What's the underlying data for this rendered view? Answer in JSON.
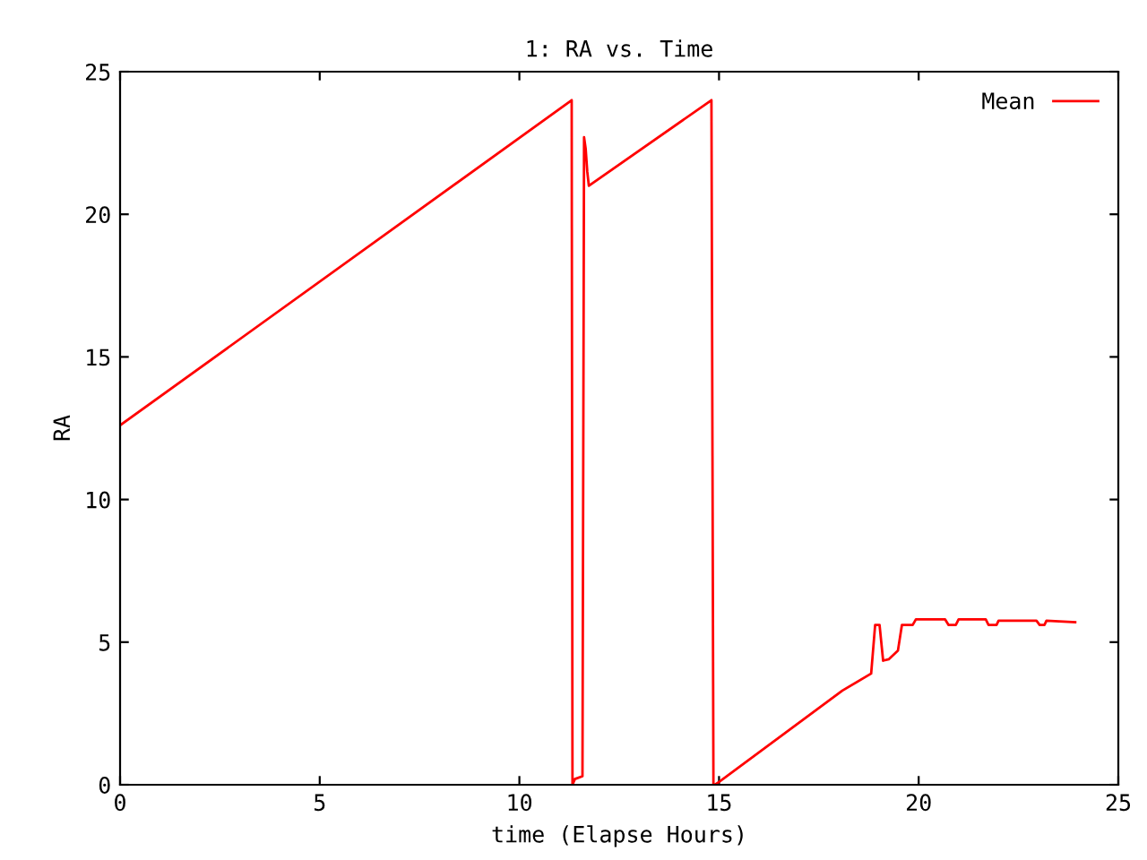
{
  "chart_data": {
    "type": "line",
    "title": "1: RA vs. Time",
    "xlabel": "time (Elapse Hours)",
    "ylabel": "RA",
    "series": [
      {
        "name": "Mean",
        "color": "#ff0000",
        "x": [
          0,
          11.31,
          11.33,
          11.39,
          11.58,
          11.62,
          11.66,
          11.7,
          11.74,
          14.81,
          14.86,
          14.9,
          15.0,
          18.09,
          18.81,
          18.91,
          19.02,
          19.11,
          19.25,
          19.48,
          19.58,
          19.85,
          19.93,
          20.66,
          20.75,
          20.93,
          21.0,
          21.68,
          21.75,
          21.95,
          22.0,
          22.95,
          23.03,
          23.15,
          23.2,
          23.92
        ],
        "values": [
          12.6,
          24.0,
          0,
          0.2,
          0.3,
          22.7,
          22.3,
          21.5,
          21.0,
          24.0,
          0,
          0,
          0.1,
          3.3,
          3.9,
          5.6,
          5.6,
          4.35,
          4.4,
          4.7,
          5.6,
          5.6,
          5.8,
          5.8,
          5.6,
          5.6,
          5.8,
          5.8,
          5.6,
          5.6,
          5.75,
          5.75,
          5.6,
          5.6,
          5.75,
          5.7
        ]
      }
    ],
    "xlim": [
      0,
      25
    ],
    "ylim": [
      0,
      25
    ],
    "xticks": [
      0,
      5,
      10,
      15,
      20,
      25
    ],
    "yticks": [
      0,
      5,
      10,
      15,
      20,
      25
    ],
    "grid": false,
    "legend": "top right",
    "marker": "none",
    "line_style": "solid"
  }
}
